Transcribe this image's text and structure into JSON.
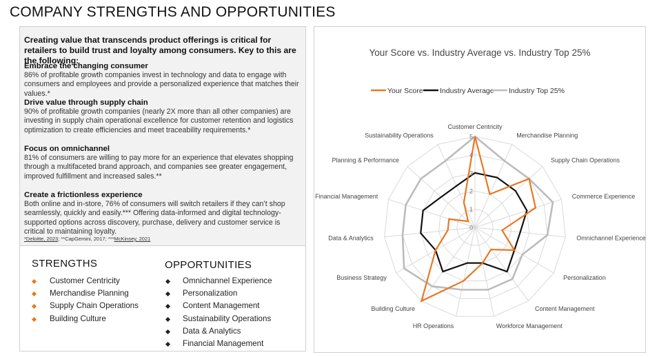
{
  "page_title": "COMPANY STRENGTHS AND OPPORTUNITIES",
  "intro": "Creating value that transcends product offerings is critical for retailers to build trust and loyalty among consumers. Key to this are the following:",
  "sections": [
    {
      "heading": "Embrace the changing consumer",
      "body": "86% of profitable growth companies invest in technology and data to engage with consumers and employees and provide a personalized experience that matches their values.*"
    },
    {
      "heading": "Drive value through supply chain",
      "body": "90% of profitable growth companies (nearly 2X more than all other companies) are investing in supply chain operational excellence for customer retention and logistics optimization to create efficiencies and meet traceability requirements.*"
    },
    {
      "heading": "Focus on omnichannel",
      "body": "81% of consumers are willing to pay more for an experience that elevates shopping through a multifaceted brand approach, and companies see greater engagement, improved fulfillment and increased sales.**"
    },
    {
      "heading": "Create a frictionless experience",
      "body": "Both online and in-store, 76% of consumers will switch retailers if they can’t shop seamlessly, quickly and easily.*** Offering data-informed and digital technology-supported options across discovery, purchase, delivery and customer service is critical to maintaining loyalty."
    }
  ],
  "footnote": {
    "a": "*Deloitte, 2023",
    "b": "; **CapGemini, 2017; ***",
    "c": "McKinsey, 2021"
  },
  "strengths": {
    "title": "STRENGTHS",
    "items": [
      "Customer Centricity",
      "Merchandise Planning",
      "Supply Chain Operations",
      "Building Culture"
    ]
  },
  "opportunities": {
    "title": "OPPORTUNITIES",
    "items": [
      "Omnichannel Experience",
      "Personalization",
      "Content Management",
      "Sustainability Operations",
      "Data & Analytics",
      "Financial Management"
    ]
  },
  "colors": {
    "your_score": "#E87722",
    "industry_average": "#111111",
    "industry_top": "#BBBBBB",
    "grid": "#d9d9d9"
  },
  "chart_data": {
    "type": "radar",
    "title": "Your Score vs.  Industry Average  vs. Industry Top 25%",
    "categories": [
      "Customer Centricity",
      "Merchandise Planning",
      "Supply Chain Operations",
      "Commerce Experience",
      "Omnichannel Experience",
      "Personalization",
      "Content Management",
      "Workforce Management",
      "HR Operations",
      "Building Culture",
      "Business Strategy",
      "Data & Analytics",
      "Financial Management",
      "Planning & Performance",
      "Sustainability Operations"
    ],
    "range": [
      0,
      5
    ],
    "ticks": [
      "0",
      "1",
      "2",
      "3",
      "4",
      "5"
    ],
    "legend_position": "top",
    "series": [
      {
        "name": "Your Score",
        "values": [
          5,
          2,
          4,
          3.5,
          1.5,
          2.5,
          1.5,
          2,
          3,
          5,
          2.5,
          1.5,
          1.5,
          0.5,
          1.5
        ]
      },
      {
        "name": "Industry Average",
        "values": [
          3,
          3,
          3,
          3,
          2.5,
          2.5,
          3,
          2,
          2,
          3,
          2.5,
          3,
          3,
          2.5,
          2.5
        ]
      },
      {
        "name": "Industry Top 25%",
        "values": [
          5,
          4,
          4,
          4.5,
          4,
          3,
          3.5,
          3.5,
          3.5,
          4,
          4.5,
          4,
          4,
          4,
          4
        ]
      }
    ]
  }
}
